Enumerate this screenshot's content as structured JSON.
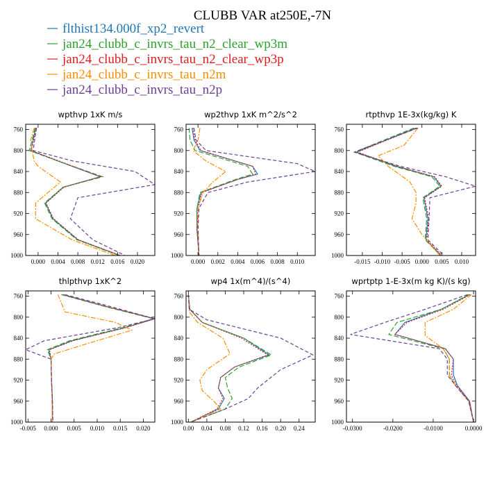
{
  "title": "CLUBB VAR at250E,-7N",
  "legend": [
    {
      "label": "flthist134.000f_xp2_revert",
      "color": "#1f77b4",
      "dash": ""
    },
    {
      "label": "jan24_clubb_c_invrs_tau_n2_clear_wp3m",
      "color": "#2ca02c",
      "dash": "7,3"
    },
    {
      "label": "jan24_clubb_c_invrs_tau_n2_clear_wp3p",
      "color": "#e31a1c",
      "dash": "2,2"
    },
    {
      "label": "jan24_clubb_c_invrs_tau_n2m",
      "color": "#ff8c00",
      "dash": "7,2,2,2"
    },
    {
      "label": "jan24_clubb_c_invrs_tau_n2p",
      "color": "#6a3d9a",
      "dash": "5,3"
    }
  ],
  "chart_data": [
    {
      "type": "line",
      "title": "wpthvp  1xK m/s",
      "xlim": [
        -0.0025,
        0.0235
      ],
      "ylim": [
        1000,
        750
      ],
      "xticks": [
        0.0,
        0.004,
        0.008,
        0.012,
        0.016,
        0.02
      ],
      "xtick_labels": [
        "0.000",
        "0.004",
        "0.008",
        "0.012",
        "0.016",
        "0.020"
      ],
      "yticks": [
        760,
        800,
        840,
        880,
        920,
        960,
        1000
      ],
      "series": [
        {
          "y": [
            757,
            780,
            800,
            820,
            850,
            870,
            900,
            930,
            970,
            1000
          ],
          "x": [
            -0.0005,
            -0.001,
            -0.0015,
            0.004,
            0.0125,
            0.005,
            0.0015,
            0.003,
            0.008,
            0.0165
          ]
        },
        {
          "y": [
            757,
            780,
            800,
            820,
            850,
            870,
            900,
            930,
            970,
            1000
          ],
          "x": [
            -0.0006,
            -0.0012,
            -0.0018,
            0.004,
            0.013,
            0.005,
            0.0013,
            0.0028,
            0.0078,
            0.0163
          ]
        },
        {
          "y": [
            757,
            780,
            800,
            820,
            850,
            870,
            900,
            930,
            970,
            1000
          ],
          "x": [
            -0.0004,
            -0.0009,
            -0.0014,
            0.0042,
            0.0126,
            0.0052,
            0.0016,
            0.0031,
            0.0081,
            0.0166
          ]
        },
        {
          "y": [
            757,
            780,
            800,
            820,
            830,
            860,
            900,
            930,
            970,
            1000
          ],
          "x": [
            -0.0008,
            -0.0015,
            -0.0012,
            -0.0008,
            0.0,
            0.0045,
            -0.0005,
            -0.0005,
            0.0068,
            0.0155
          ]
        },
        {
          "y": [
            757,
            780,
            800,
            820,
            840,
            865,
            890,
            930,
            970,
            1000
          ],
          "x": [
            -0.0003,
            -0.0007,
            -0.001,
            0.007,
            0.0195,
            0.0235,
            0.008,
            0.0065,
            0.011,
            0.0175
          ]
        }
      ]
    },
    {
      "type": "line",
      "title": "wp2thvp  1xK m^2/s^2",
      "xlim": [
        -0.0012,
        0.0118
      ],
      "ylim": [
        1000,
        750
      ],
      "xticks": [
        0.0,
        0.002,
        0.004,
        0.006,
        0.008,
        0.01
      ],
      "xtick_labels": [
        "0.000",
        "0.002",
        "0.004",
        "0.006",
        "0.008",
        "0.010"
      ],
      "yticks": [
        760,
        800,
        840,
        880,
        920,
        960,
        1000
      ],
      "series": [
        {
          "y": [
            757,
            780,
            800,
            830,
            845,
            855,
            880,
            910,
            950,
            1000
          ],
          "x": [
            -0.0006,
            -0.0004,
            0.0002,
            0.0055,
            0.006,
            0.004,
            0.0003,
            -0.0001,
            -0.0001,
            0.0001
          ]
        },
        {
          "y": [
            757,
            780,
            800,
            830,
            845,
            855,
            880,
            910,
            950,
            1000
          ],
          "x": [
            -0.0009,
            -0.0008,
            -0.0003,
            0.005,
            0.0055,
            0.0038,
            0.0002,
            -0.0001,
            -0.0001,
            0.0001
          ]
        },
        {
          "y": [
            757,
            780,
            800,
            830,
            845,
            855,
            880,
            910,
            950,
            1000
          ],
          "x": [
            -0.0005,
            -0.0003,
            0.0003,
            0.0055,
            0.0058,
            0.004,
            0.0004,
            0.0,
            -0.0001,
            0.0001
          ]
        },
        {
          "y": [
            757,
            780,
            800,
            820,
            840,
            860,
            880,
            910,
            950,
            1000
          ],
          "x": [
            0.0002,
            0.0,
            -0.0005,
            0.0008,
            0.0028,
            0.0015,
            0.0005,
            0.0,
            0.0,
            0.0001
          ]
        },
        {
          "y": [
            757,
            780,
            800,
            825,
            840,
            860,
            880,
            910,
            950,
            1000
          ],
          "x": [
            -0.0004,
            -0.0002,
            0.0008,
            0.01,
            0.0118,
            0.005,
            0.001,
            0.0001,
            0.0,
            0.0001
          ]
        }
      ]
    },
    {
      "type": "line",
      "title": "rtpthvp   1E-3x(kg/kg) K",
      "xlim": [
        -0.019,
        0.0135
      ],
      "ylim": [
        1000,
        750
      ],
      "xticks": [
        -0.015,
        -0.01,
        -0.005,
        0.0,
        0.005,
        0.01
      ],
      "xtick_labels": [
        "-0.015",
        "-0.010",
        "-0.005",
        "0.000",
        "0.005",
        "0.010"
      ],
      "yticks": [
        760,
        800,
        840,
        880,
        920,
        960,
        1000
      ],
      "series": [
        {
          "y": [
            757,
            780,
            803,
            830,
            850,
            868,
            890,
            930,
            970,
            1000
          ],
          "x": [
            -0.0015,
            -0.009,
            -0.0165,
            -0.0065,
            0.003,
            0.0048,
            0.0005,
            0.0015,
            0.001,
            0.0048
          ]
        },
        {
          "y": [
            757,
            780,
            803,
            830,
            850,
            868,
            890,
            930,
            970,
            1000
          ],
          "x": [
            -0.002,
            -0.0095,
            -0.017,
            -0.007,
            0.0025,
            0.0045,
            0.0002,
            0.0012,
            0.0008,
            0.0047
          ]
        },
        {
          "y": [
            757,
            780,
            803,
            830,
            850,
            868,
            890,
            930,
            970,
            1000
          ],
          "x": [
            -0.0012,
            -0.0088,
            -0.0162,
            -0.0062,
            0.0032,
            0.005,
            0.0007,
            0.0017,
            0.0012,
            0.005
          ]
        },
        {
          "y": [
            757,
            790,
            810,
            830,
            860,
            880,
            900,
            930,
            960,
            1000
          ],
          "x": [
            -0.001,
            -0.0045,
            -0.011,
            -0.0085,
            -0.003,
            -0.0015,
            -0.0015,
            -0.0025,
            0.0,
            0.0045
          ]
        },
        {
          "y": [
            757,
            780,
            803,
            830,
            850,
            868,
            890,
            930,
            970,
            1000
          ],
          "x": [
            -0.001,
            -0.009,
            -0.017,
            -0.0055,
            0.006,
            0.0135,
            0.002,
            0.0018,
            0.0015,
            0.0055
          ]
        }
      ]
    },
    {
      "type": "line",
      "title": "thlpthvp   1xK^2",
      "xlim": [
        -0.0055,
        0.0225
      ],
      "ylim": [
        1000,
        750
      ],
      "xticks": [
        -0.005,
        0.0,
        0.005,
        0.01,
        0.015,
        0.02
      ],
      "xtick_labels": [
        "-0.005",
        "0.000",
        "0.005",
        "0.010",
        "0.015",
        "0.020"
      ],
      "yticks": [
        760,
        800,
        840,
        880,
        920,
        960,
        1000
      ],
      "series": [
        {
          "y": [
            757,
            780,
            803,
            820,
            845,
            862,
            880,
            920,
            960,
            1000
          ],
          "x": [
            0.0025,
            0.012,
            0.0225,
            0.016,
            0.0045,
            -0.0005,
            0.0,
            0.0001,
            0.0003,
            0.0003
          ]
        },
        {
          "y": [
            757,
            780,
            803,
            820,
            845,
            862,
            880,
            920,
            960,
            1000
          ],
          "x": [
            0.0022,
            0.0118,
            0.0222,
            0.0155,
            0.004,
            -0.0008,
            0.0,
            0.0001,
            0.0003,
            0.0003
          ]
        },
        {
          "y": [
            757,
            780,
            803,
            820,
            845,
            862,
            880,
            920,
            960,
            1000
          ],
          "x": [
            0.0026,
            0.0122,
            0.0225,
            0.0162,
            0.0048,
            -0.0003,
            0.0,
            0.0001,
            0.0003,
            0.0003
          ]
        },
        {
          "y": [
            757,
            790,
            810,
            825,
            850,
            870,
            880,
            920,
            960,
            1000
          ],
          "x": [
            0.0015,
            0.003,
            0.014,
            0.0175,
            0.008,
            0.0007,
            0.0,
            0.0001,
            0.0002,
            0.0003
          ]
        },
        {
          "y": [
            757,
            780,
            803,
            820,
            845,
            862,
            880,
            920,
            960,
            1000
          ],
          "x": [
            0.003,
            0.013,
            0.0225,
            0.0145,
            -0.0015,
            -0.0055,
            0.0,
            0.0001,
            0.0003,
            0.0004
          ]
        }
      ]
    },
    {
      "type": "line",
      "title": "wp4   1x(m^4)/(s^4)",
      "xlim": [
        -0.005,
        0.275
      ],
      "ylim": [
        1000,
        750
      ],
      "xticks": [
        0.0,
        0.04,
        0.08,
        0.12,
        0.16,
        0.2,
        0.24
      ],
      "xtick_labels": [
        "0.00",
        "0.04",
        "0.08",
        "0.12",
        "0.16",
        "0.20",
        "0.24"
      ],
      "yticks": [
        760,
        800,
        840,
        880,
        920,
        960,
        1000
      ],
      "series": [
        {
          "y": [
            757,
            785,
            810,
            840,
            872,
            895,
            915,
            935,
            955,
            975,
            1000
          ],
          "x": [
            0.0,
            0.003,
            0.03,
            0.12,
            0.175,
            0.1,
            0.07,
            0.065,
            0.078,
            0.065,
            0.005
          ]
        },
        {
          "y": [
            757,
            785,
            810,
            840,
            872,
            895,
            915,
            935,
            955,
            975,
            1000
          ],
          "x": [
            0.0,
            0.003,
            0.03,
            0.12,
            0.18,
            0.11,
            0.08,
            0.085,
            0.095,
            0.08,
            0.005
          ]
        },
        {
          "y": [
            757,
            785,
            810,
            840,
            872,
            895,
            915,
            935,
            955,
            975,
            1000
          ],
          "x": [
            0.0,
            0.003,
            0.03,
            0.115,
            0.172,
            0.1,
            0.07,
            0.065,
            0.075,
            0.062,
            0.005
          ]
        },
        {
          "y": [
            757,
            790,
            810,
            840,
            870,
            900,
            920,
            940,
            960,
            975,
            1000
          ],
          "x": [
            0.0,
            0.002,
            0.02,
            0.075,
            0.09,
            0.04,
            0.025,
            0.03,
            0.055,
            0.07,
            0.005
          ]
        },
        {
          "y": [
            757,
            785,
            805,
            840,
            872,
            900,
            935,
            955,
            975,
            1000
          ],
          "x": [
            0.0,
            0.002,
            0.04,
            0.2,
            0.27,
            0.2,
            0.15,
            0.13,
            0.08,
            0.005
          ]
        }
      ]
    },
    {
      "type": "line",
      "title": "wprtptp   1-E-3x(m kg K)/(s kg)",
      "xlim": [
        -0.0315,
        0.0005
      ],
      "ylim": [
        1000,
        750
      ],
      "xticks": [
        -0.03,
        -0.02,
        -0.01,
        0.0
      ],
      "xtick_labels": [
        "-0.0300",
        "-0.0200",
        "-0.0100",
        "0.0000"
      ],
      "yticks": [
        760,
        800,
        840,
        880,
        920,
        960,
        1000
      ],
      "series": [
        {
          "y": [
            757,
            785,
            810,
            833,
            860,
            880,
            910,
            930,
            960,
            1000
          ],
          "x": [
            -0.001,
            -0.008,
            -0.017,
            -0.0195,
            -0.007,
            -0.005,
            -0.005,
            -0.004,
            -0.001,
            0.0
          ]
        },
        {
          "y": [
            757,
            785,
            810,
            833,
            860,
            880,
            910,
            930,
            960,
            1000
          ],
          "x": [
            -0.0012,
            -0.008,
            -0.019,
            -0.021,
            -0.0075,
            -0.006,
            -0.006,
            -0.0045,
            -0.0012,
            0.0
          ]
        },
        {
          "y": [
            757,
            785,
            810,
            833,
            860,
            880,
            910,
            930,
            960,
            1000
          ],
          "x": [
            -0.0008,
            -0.0075,
            -0.0165,
            -0.0195,
            -0.007,
            -0.005,
            -0.0055,
            -0.0042,
            -0.001,
            0.0
          ]
        },
        {
          "y": [
            757,
            785,
            810,
            835,
            860,
            880,
            910,
            930,
            960,
            1000
          ],
          "x": [
            -0.0005,
            -0.005,
            -0.012,
            -0.012,
            -0.0075,
            -0.006,
            -0.006,
            -0.0045,
            -0.0012,
            0.0
          ]
        },
        {
          "y": [
            757,
            785,
            810,
            833,
            860,
            880,
            910,
            930,
            960,
            1000
          ],
          "x": [
            -0.0015,
            -0.012,
            -0.022,
            -0.0305,
            -0.0085,
            -0.0065,
            -0.0065,
            -0.0045,
            -0.0012,
            0.0
          ]
        }
      ]
    }
  ]
}
